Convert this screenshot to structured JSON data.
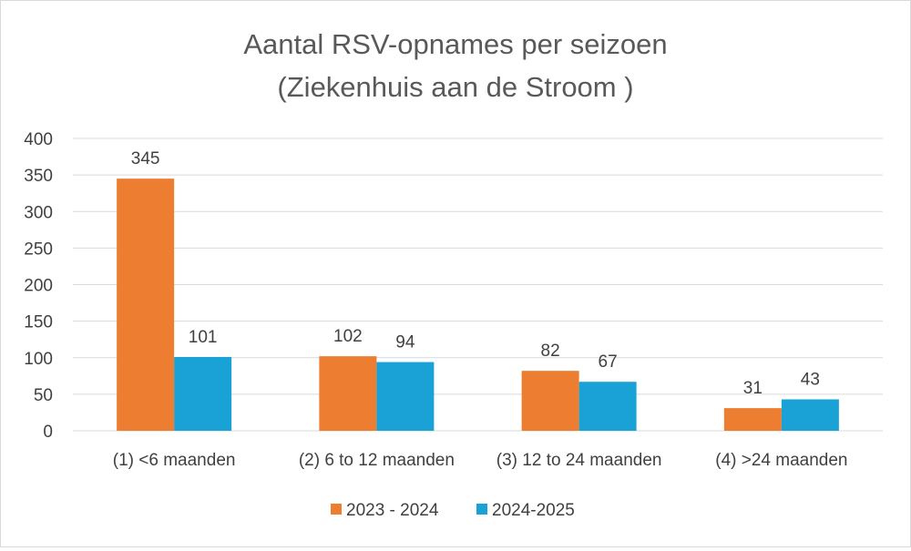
{
  "chart_data": {
    "type": "bar",
    "title_line1": "Aantal RSV-opnames per seizoen",
    "title_line2": "(Ziekenhuis aan de Stroom )",
    "xlabel": "",
    "ylabel": "",
    "ylim": [
      0,
      400
    ],
    "yticks": [
      "0",
      "50",
      "100",
      "150",
      "200",
      "250",
      "300",
      "350",
      "400"
    ],
    "categories": [
      "(1) <6 maanden",
      "(2) 6 to 12 maanden",
      "(3) 12 to 24 maanden",
      "(4) >24 maanden"
    ],
    "series": [
      {
        "name": "2023 - 2024",
        "color": "#ed7d31",
        "values": [
          345,
          102,
          82,
          31
        ]
      },
      {
        "name": "2024-2025",
        "color": "#1aa1d6",
        "values": [
          101,
          94,
          67,
          43
        ]
      }
    ],
    "grid": true,
    "legend_position": "bottom"
  }
}
